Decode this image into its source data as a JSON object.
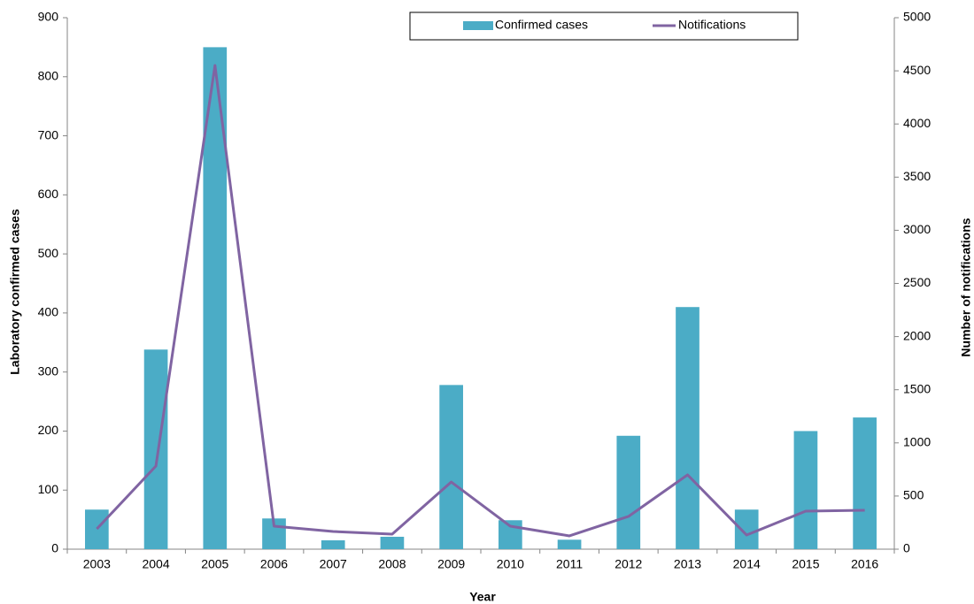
{
  "chart_data": {
    "type": "bar",
    "x_label": "Year",
    "y_label": "Laboratory confirmed cases",
    "y2_label": "Number of notifications",
    "categories": [
      "2003",
      "2004",
      "2005",
      "2006",
      "2007",
      "2008",
      "2009",
      "2010",
      "2011",
      "2012",
      "2013",
      "2014",
      "2015",
      "2016"
    ],
    "series": [
      {
        "name": "Confirmed cases",
        "type": "bar",
        "color": "#4bacc6",
        "values": [
          67,
          338,
          850,
          52,
          15,
          21,
          278,
          49,
          16,
          192,
          410,
          67,
          200,
          223
        ]
      },
      {
        "name": "Notifications",
        "type": "line",
        "axis": "y2",
        "color": "#8064a2",
        "values": [
          191,
          782,
          4551,
          216,
          166,
          141,
          632,
          216,
          125,
          308,
          699,
          133,
          358,
          366
        ]
      }
    ],
    "ylim": [
      0,
      900
    ],
    "yticks": [
      0,
      100,
      200,
      300,
      400,
      500,
      600,
      700,
      800,
      900
    ],
    "y2lim": [
      0,
      5000
    ],
    "y2ticks": [
      0,
      500,
      1000,
      1500,
      2000,
      2500,
      3000,
      3500,
      4000,
      4500,
      5000
    ],
    "legend": "top-right"
  }
}
